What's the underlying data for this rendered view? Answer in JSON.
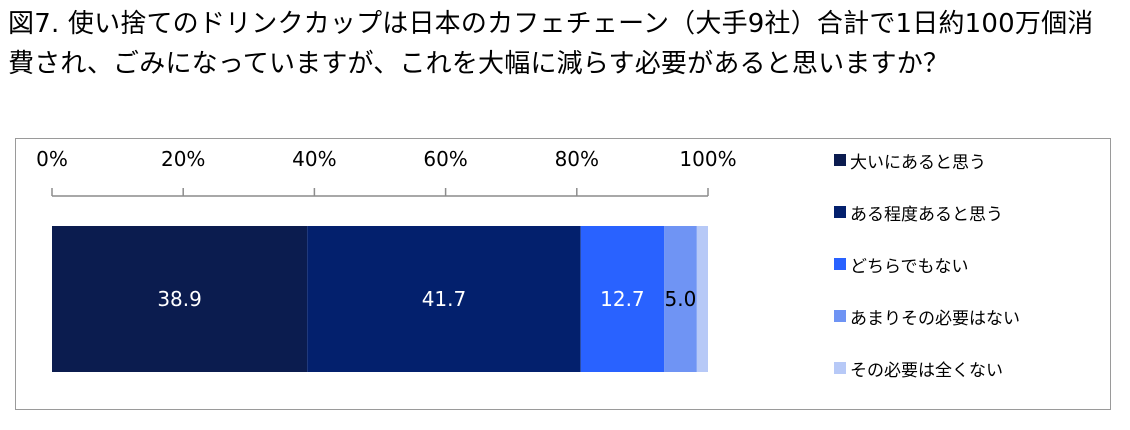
{
  "title": "図7. 使い捨てのドリンクカップは日本のカフェチェーン（大手9社）合計で1日約100万個消費され、ごみになっていますが、これを大幅に減らす必要があると思いますか？",
  "chart_data": {
    "type": "bar",
    "orientation": "horizontal-stacked",
    "xlim": [
      0,
      100
    ],
    "tick_labels": [
      "0%",
      "20%",
      "40%",
      "60%",
      "80%",
      "100%"
    ],
    "series": [
      {
        "name": "大いにあると思う",
        "value": 38.9,
        "color": "#0b1c4f",
        "label_color": "#ffffff"
      },
      {
        "name": "ある程度あると思う",
        "value": 41.7,
        "color": "#03206d",
        "label_color": "#ffffff"
      },
      {
        "name": "どちらでもない",
        "value": 12.7,
        "color": "#2962ff",
        "label_color": "#ffffff"
      },
      {
        "name": "あまりその必要はない",
        "value": 5.0,
        "color": "#6f94f4",
        "label_color": "#000000"
      },
      {
        "name": "その必要は全くない",
        "value": 1.7,
        "color": "#b7c9f7",
        "label_color": "#000000"
      }
    ],
    "data_labels": [
      "38.9",
      "41.7",
      "12.7",
      "5.0",
      ""
    ],
    "legend_position": "right"
  }
}
